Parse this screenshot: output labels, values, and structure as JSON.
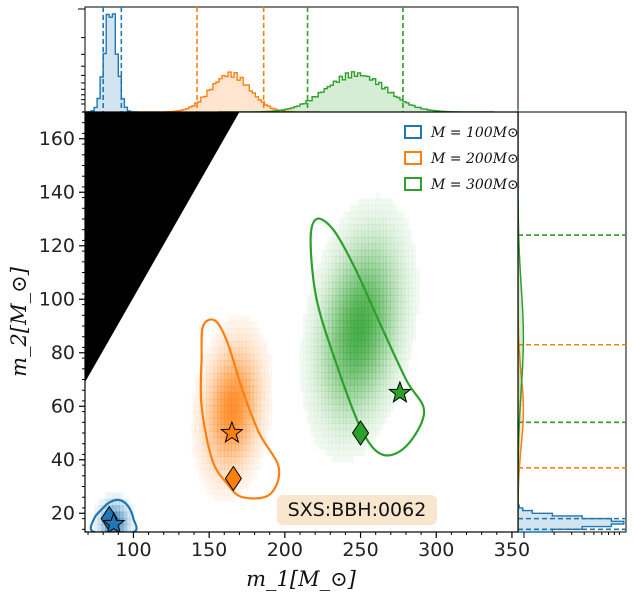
{
  "chart_data": {
    "type": "joint-posterior",
    "annotation": "SXS:BBH:0062",
    "xlabel": "m_1[M_⊙]",
    "ylabel": "m_2[M_⊙]",
    "xlim": [
      68,
      354
    ],
    "ylim": [
      13,
      170
    ],
    "xticks": [
      100,
      150,
      200,
      250,
      300,
      350
    ],
    "yticks": [
      20,
      40,
      60,
      80,
      100,
      120,
      140,
      160
    ],
    "excluded_region": [
      [
        68,
        69
      ],
      [
        68,
        170
      ],
      [
        170,
        170
      ]
    ],
    "legend": {
      "position": "top-right",
      "entries": [
        {
          "label": "M = 100M⊙",
          "color": "#1f77b4"
        },
        {
          "label": "M = 200M⊙",
          "color": "#ff7f0e"
        },
        {
          "label": "M = 300M⊙",
          "color": "#2ca02c"
        }
      ]
    },
    "series": [
      {
        "name": "M = 100M⊙",
        "color": "#1f77b4",
        "contour": [
          [
            80,
            22
          ],
          [
            84,
            24
          ],
          [
            90,
            25
          ],
          [
            96,
            23
          ],
          [
            100,
            18
          ],
          [
            100,
            13
          ],
          [
            74,
            13
          ],
          [
            74,
            18
          ]
        ],
        "density": {
          "center": [
            86,
            15
          ],
          "sigma": [
            6,
            5
          ],
          "angle": 0
        },
        "star": [
          87,
          16
        ],
        "diamond": [
          84,
          18
        ],
        "top_marginal": {
          "center": 84,
          "width": 4,
          "lines": [
            80,
            92
          ]
        },
        "right_marginal": {
          "center": 16,
          "width": 2,
          "lines": [
            14,
            18
          ]
        }
      },
      {
        "name": "M = 200M⊙",
        "color": "#ff7f0e",
        "contour": [
          [
            145,
            78
          ],
          [
            146,
            90
          ],
          [
            154,
            92
          ],
          [
            162,
            84
          ],
          [
            172,
            66
          ],
          [
            183,
            50
          ],
          [
            196,
            37
          ],
          [
            190,
            27
          ],
          [
            172,
            26
          ],
          [
            162,
            31
          ],
          [
            152,
            40
          ],
          [
            145,
            60
          ]
        ],
        "density": {
          "center": [
            164,
            58
          ],
          "sigma": [
            11,
            15
          ],
          "angle": 18
        },
        "star": [
          165,
          50
        ],
        "diamond": [
          166,
          33
        ],
        "top_marginal": {
          "center": 163,
          "width": 13,
          "lines": [
            142,
            186
          ]
        },
        "right_marginal": {
          "center": 58,
          "width": 13,
          "lines": [
            37,
            83
          ]
        }
      },
      {
        "name": "M = 300M⊙",
        "color": "#2ca02c",
        "contour": [
          [
            217,
            122
          ],
          [
            221,
            130
          ],
          [
            232,
            126
          ],
          [
            246,
            112
          ],
          [
            262,
            92
          ],
          [
            280,
            70
          ],
          [
            292,
            58
          ],
          [
            280,
            45
          ],
          [
            264,
            42
          ],
          [
            250,
            52
          ],
          [
            234,
            76
          ],
          [
            221,
            100
          ]
        ],
        "density": {
          "center": [
            248,
            88
          ],
          "sigma": [
            15,
            22
          ],
          "angle": 25
        },
        "star": [
          276,
          65
        ],
        "diamond": [
          250,
          50
        ],
        "top_marginal": {
          "center": 246,
          "width": 20,
          "lines": [
            215,
            278
          ]
        },
        "right_marginal": {
          "center": 85,
          "width": 19,
          "lines": [
            54,
            124
          ]
        }
      }
    ]
  }
}
